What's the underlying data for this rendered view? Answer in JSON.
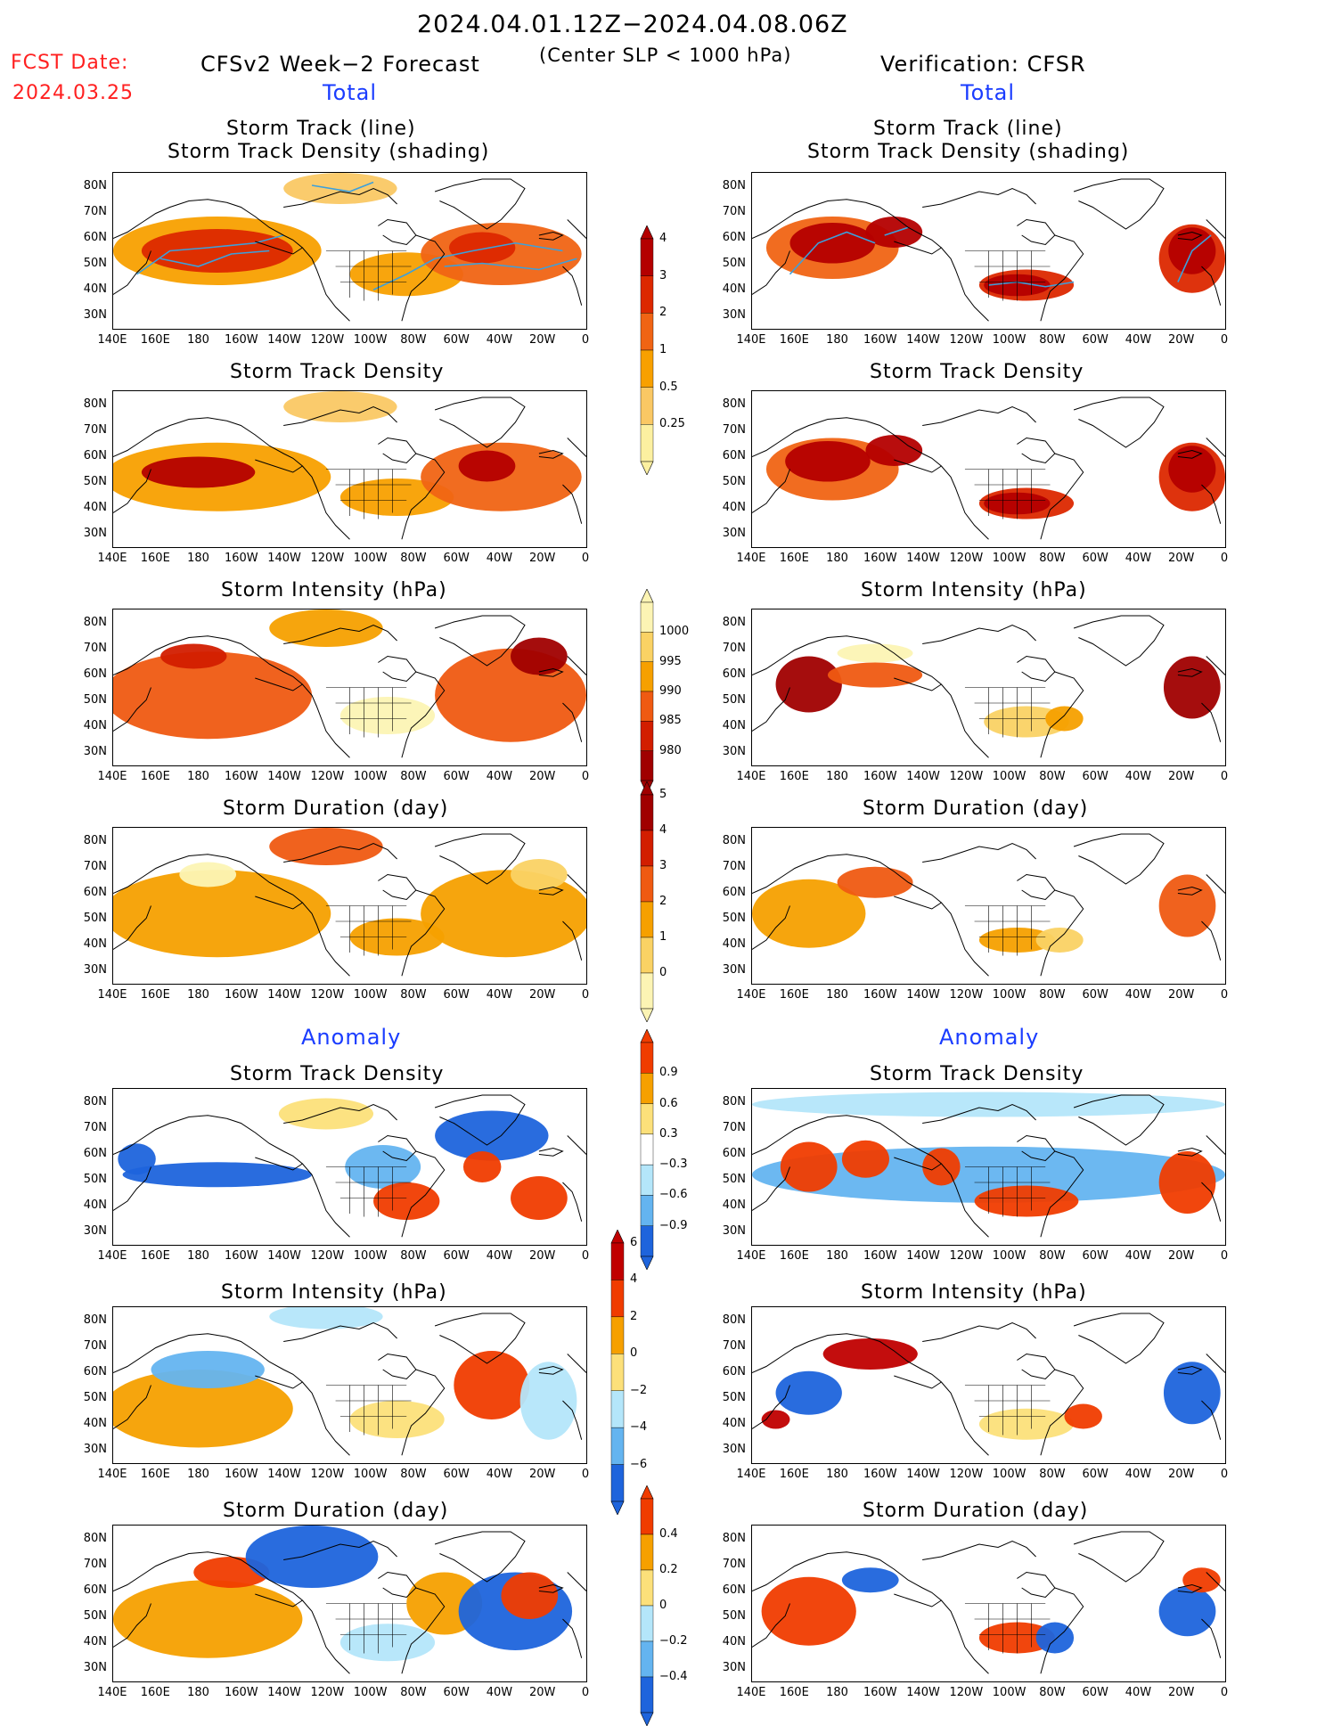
{
  "header": {
    "period": "2024.04.01.12Z−2024.04.08.06Z",
    "criterion": "(Center SLP < 1000 hPa)",
    "fcst_label": "FCST Date:",
    "fcst_date": "2024.03.25",
    "left_title": "CFSv2 Week−2 Forecast",
    "right_title": "Verification: CFSR"
  },
  "sections": {
    "total": "Total",
    "anomaly": "Anomaly"
  },
  "panel_titles": {
    "track_line": "Storm Track (line)",
    "track_shading": "Storm Track Density (shading)",
    "density": "Storm Track Density",
    "intensity": "Storm Intensity (hPa)",
    "duration": "Storm Duration (day)"
  },
  "axes": {
    "lat_labels": [
      "80N",
      "70N",
      "60N",
      "50N",
      "40N",
      "30N"
    ],
    "lon_labels": [
      "140E",
      "160E",
      "180",
      "160W",
      "140W",
      "120W",
      "100W",
      "80W",
      "60W",
      "40W",
      "20W",
      "0"
    ]
  },
  "colorbars": {
    "density_total": {
      "labels": [
        "4",
        "3",
        "2",
        "1",
        "0.5",
        "0.25"
      ],
      "colors": [
        "#b40000",
        "#dc2800",
        "#f06414",
        "#f8a000",
        "#fac864",
        "#fcf0a0"
      ]
    },
    "intensity_total": {
      "labels": [
        "1000",
        "995",
        "990",
        "985",
        "980"
      ],
      "colors": [
        "#fcf4b4",
        "#fad264",
        "#f6a000",
        "#ef5a12",
        "#d21e00",
        "#a00000"
      ]
    },
    "duration_total": {
      "labels": [
        "5",
        "4",
        "3",
        "2",
        "1",
        "0"
      ],
      "colors": [
        "#a00000",
        "#d21e00",
        "#ef5a12",
        "#f6a000",
        "#fad264",
        "#fcf4b4"
      ]
    },
    "density_anom": {
      "labels": [
        "0.9",
        "0.6",
        "0.3",
        "−0.3",
        "−0.6",
        "−0.9"
      ],
      "colors": [
        "#f03c00",
        "#f6a000",
        "#fce07a",
        "#ffffff",
        "#b4e6fa",
        "#64b4f0",
        "#1e64dc"
      ]
    },
    "intensity_anom": {
      "labels": [
        "6",
        "4",
        "2",
        "0",
        "−2",
        "−4",
        "−6"
      ],
      "colors": [
        "#c00000",
        "#f03c00",
        "#f6a000",
        "#fce07a",
        "#b4e6fa",
        "#64b4f0",
        "#1e64dc"
      ]
    },
    "duration_anom": {
      "labels": [
        "0.4",
        "0.2",
        "0",
        "−0.2",
        "−0.4"
      ],
      "colors": [
        "#f03c00",
        "#f6a000",
        "#fce07a",
        "#b4e6fa",
        "#64b4f0",
        "#1e64dc"
      ]
    }
  },
  "palette": {
    "track_line": "#3ca0dc",
    "map_outline": "#000000",
    "label_red": "#ff2020",
    "label_blue": "#1a3cff"
  }
}
